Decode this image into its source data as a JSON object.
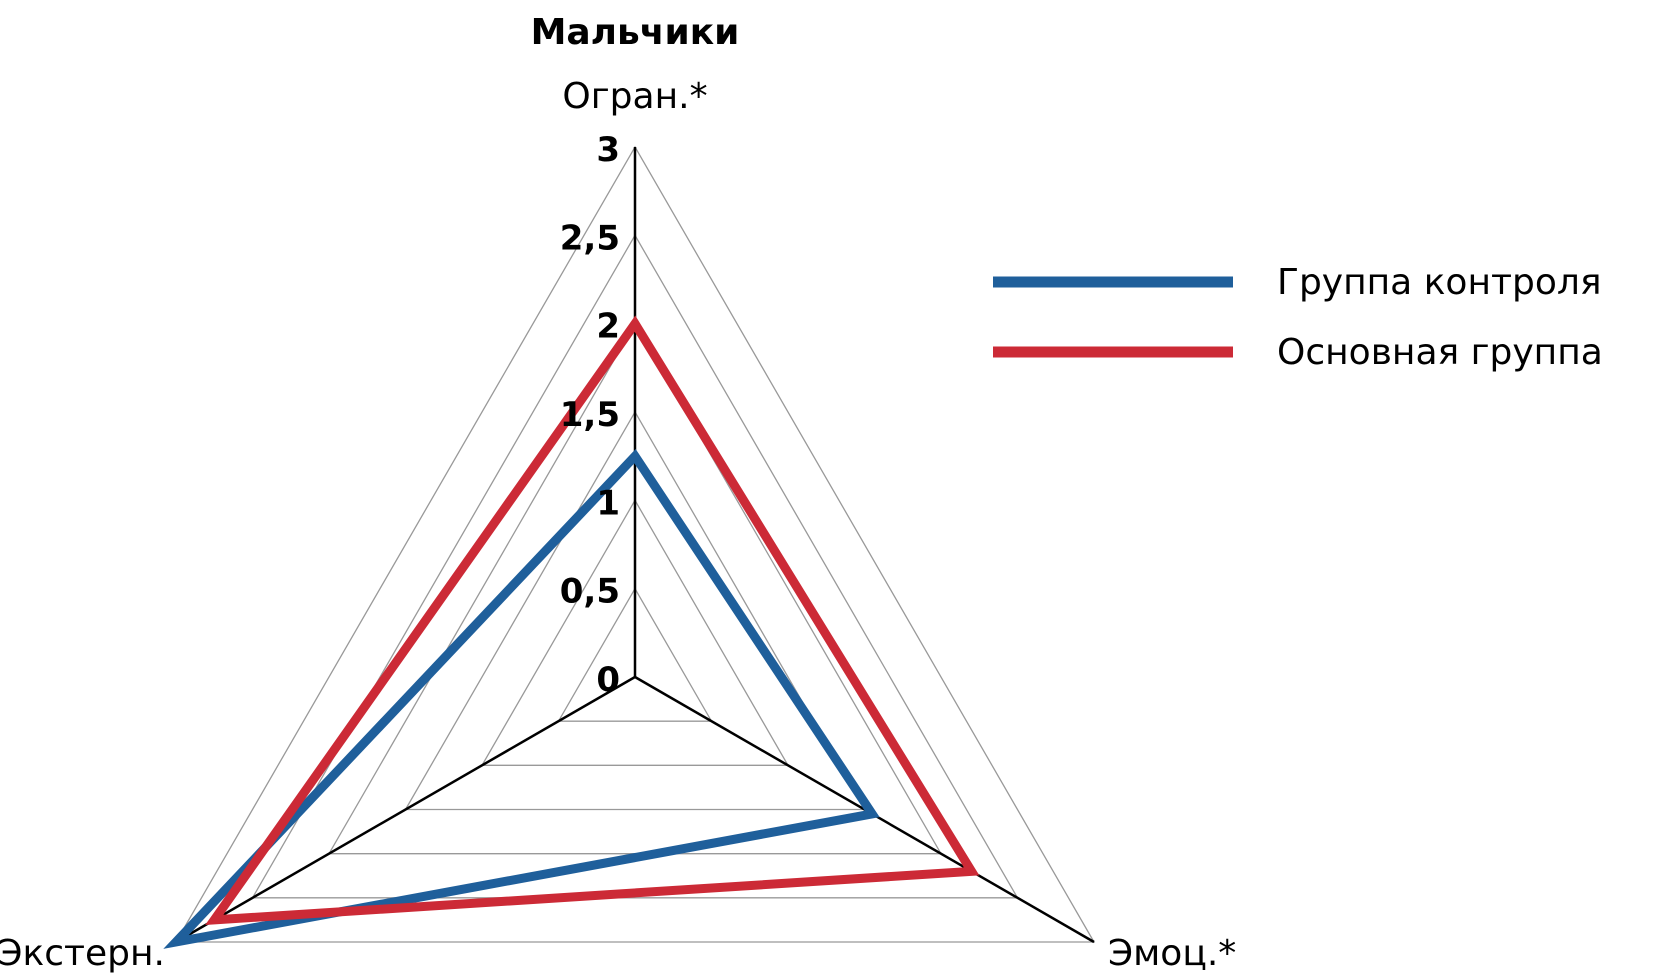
{
  "chart_data": {
    "type": "radar",
    "title": "Мальчики",
    "axes": [
      "Огран.*",
      "Эмоц.*",
      "Экстерн."
    ],
    "ticks": [
      "0",
      "0,5",
      "1",
      "1,5",
      "2",
      "2,5",
      "3"
    ],
    "tick_values": [
      0,
      0.5,
      1,
      1.5,
      2,
      2.5,
      3
    ],
    "range": [
      0,
      3
    ],
    "legend_position": "right",
    "series": [
      {
        "name": "Группа контроля",
        "color": "#1f5f9b",
        "values": [
          1.25,
          1.55,
          3.0
        ]
      },
      {
        "name": "Основная группа",
        "color": "#cc2a36",
        "values": [
          2.0,
          2.2,
          2.75
        ]
      }
    ]
  }
}
